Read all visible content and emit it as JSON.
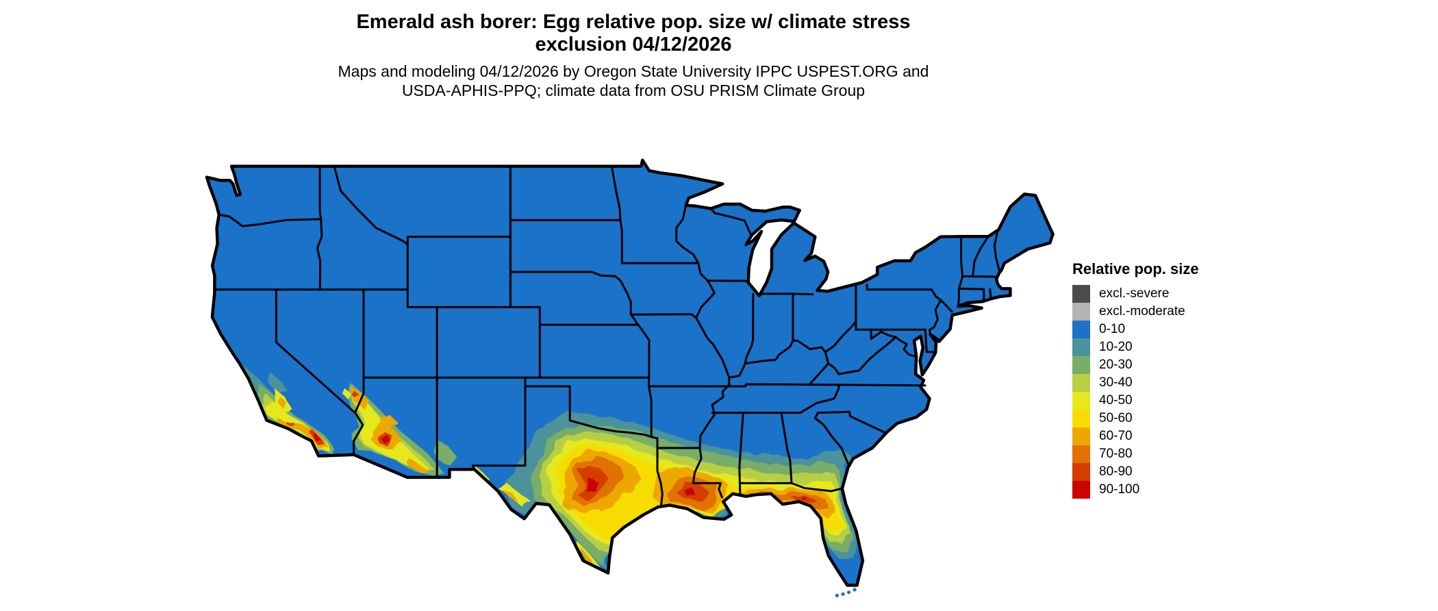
{
  "title": {
    "line1": "Emerald ash borer: Egg relative pop. size w/ climate stress",
    "line2": "exclusion 04/12/2026"
  },
  "subtitle": {
    "line1": "Maps and modeling 04/12/2026 by Oregon State University IPPC USPEST.ORG and",
    "line2": "USDA-APHIS-PPQ; climate data from OSU PRISM Climate Group"
  },
  "legend": {
    "title": "Relative pop. size",
    "items": [
      {
        "label": "excl.-severe",
        "color": "#4b4b4b"
      },
      {
        "label": "excl.-moderate",
        "color": "#b4b4b4"
      },
      {
        "label": "0-10",
        "color": "#1b72c9"
      },
      {
        "label": "10-20",
        "color": "#4b929b"
      },
      {
        "label": "20-30",
        "color": "#79ad68"
      },
      {
        "label": "30-40",
        "color": "#b8cf44"
      },
      {
        "label": "40-50",
        "color": "#e4e81c"
      },
      {
        "label": "50-60",
        "color": "#f6dc00"
      },
      {
        "label": "60-70",
        "color": "#eda800"
      },
      {
        "label": "70-80",
        "color": "#e17200"
      },
      {
        "label": "80-90",
        "color": "#d53c00"
      },
      {
        "label": "90-100",
        "color": "#ca0400"
      }
    ]
  },
  "map": {
    "region": "Continental United States",
    "water_background": "#ffffff",
    "state_border_color": "#000000",
    "dominant_class": "0-10",
    "high_value_areas": [
      "southern California",
      "central and southern Arizona",
      "central and eastern Texas",
      "Louisiana",
      "Gulf Coast",
      "northern Florida"
    ]
  }
}
